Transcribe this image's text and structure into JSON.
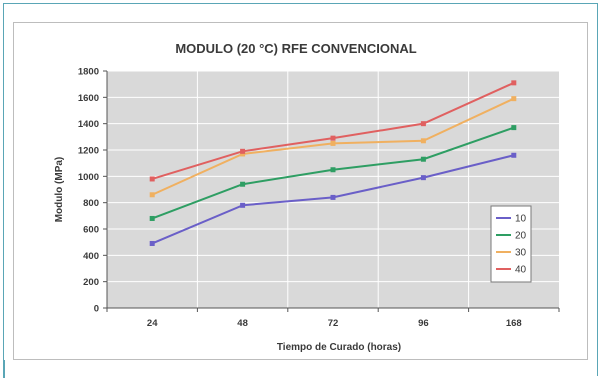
{
  "colors": {
    "plot_bg": "#d9d9d9",
    "grid": "#ffffff",
    "frame": "#5aa6b6"
  },
  "chart_data": {
    "type": "line",
    "title": "MODULO (20 °C) RFE CONVENCIONAL",
    "xlabel": "Tiempo de Curado (horas)",
    "ylabel": "Modulo (MPa)",
    "categories": [
      "24",
      "48",
      "72",
      "96",
      "168"
    ],
    "ylim": [
      0,
      1800
    ],
    "yticks": [
      0,
      200,
      400,
      600,
      800,
      1000,
      1200,
      1400,
      1600,
      1800
    ],
    "grid": true,
    "legend_position": "right",
    "series": [
      {
        "name": "10",
        "color": "#6a5fc8",
        "values": [
          490,
          780,
          840,
          990,
          1160
        ]
      },
      {
        "name": "20",
        "color": "#2e9e63",
        "values": [
          680,
          940,
          1050,
          1130,
          1370
        ]
      },
      {
        "name": "30",
        "color": "#f0b060",
        "values": [
          860,
          1170,
          1250,
          1270,
          1590
        ]
      },
      {
        "name": "40",
        "color": "#e06060",
        "values": [
          980,
          1190,
          1290,
          1400,
          1710
        ]
      }
    ]
  }
}
